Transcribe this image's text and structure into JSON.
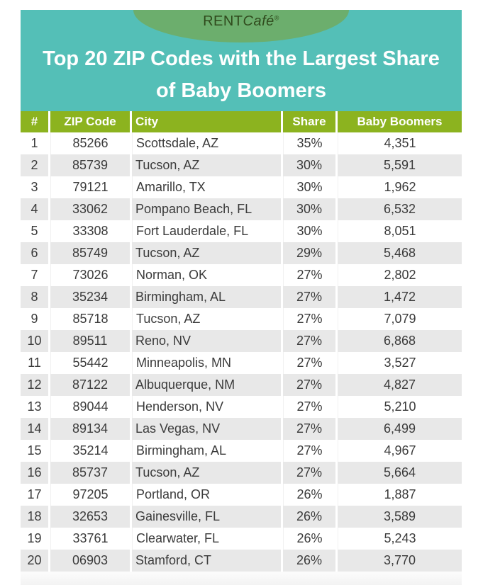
{
  "banner": {
    "background_color": "#54BFB7",
    "ellipse_color": "#6CAE6D",
    "logo": {
      "prefix": "RENT",
      "cafe": "Café",
      "registered": "®",
      "text_color": "#2F4A1C"
    },
    "title_line1": "Top 20 ZIP Codes with the Largest Share",
    "title_line2": "of Baby Boomers",
    "title_color": "#ffffff"
  },
  "chart_data": {
    "type": "table",
    "title": "Top 20 ZIP Codes with the Largest Share of Baby Boomers",
    "columns": [
      "#",
      "ZIP Code",
      "City",
      "Share",
      "Baby Boomers"
    ],
    "column_keys": [
      "rank",
      "zip-code",
      "city",
      "share",
      "baby-boomers"
    ],
    "rows": [
      [
        "1",
        "85266",
        "Scottsdale, AZ",
        "35%",
        "4,351"
      ],
      [
        "2",
        "85739",
        "Tucson, AZ",
        "30%",
        "5,591"
      ],
      [
        "3",
        "79121",
        "Amarillo, TX",
        "30%",
        "1,962"
      ],
      [
        "4",
        "33062",
        "Pompano Beach, FL",
        "30%",
        "6,532"
      ],
      [
        "5",
        "33308",
        "Fort Lauderdale, FL",
        "30%",
        "8,051"
      ],
      [
        "6",
        "85749",
        "Tucson, AZ",
        "29%",
        "5,468"
      ],
      [
        "7",
        "73026",
        "Norman, OK",
        "27%",
        "2,802"
      ],
      [
        "8",
        "35234",
        "Birmingham, AL",
        "27%",
        "1,472"
      ],
      [
        "9",
        "85718",
        "Tucson, AZ",
        "27%",
        "7,079"
      ],
      [
        "10",
        "89511",
        "Reno, NV",
        "27%",
        "6,868"
      ],
      [
        "11",
        "55442",
        "Minneapolis, MN",
        "27%",
        "3,527"
      ],
      [
        "12",
        "87122",
        "Albuquerque, NM",
        "27%",
        "4,827"
      ],
      [
        "13",
        "89044",
        "Henderson, NV",
        "27%",
        "5,210"
      ],
      [
        "14",
        "89134",
        "Las Vegas, NV",
        "27%",
        "6,499"
      ],
      [
        "15",
        "35214",
        "Birmingham, AL",
        "27%",
        "4,967"
      ],
      [
        "16",
        "85737",
        "Tucson, AZ",
        "27%",
        "5,664"
      ],
      [
        "17",
        "97205",
        "Portland, OR",
        "26%",
        "1,887"
      ],
      [
        "18",
        "32653",
        "Gainesville, FL",
        "26%",
        "3,589"
      ],
      [
        "19",
        "33761",
        "Clearwater, FL",
        "26%",
        "5,243"
      ],
      [
        "20",
        "06903",
        "Stamford, CT",
        "26%",
        "3,770"
      ]
    ],
    "layout": {
      "header_background": "#8CB31F",
      "row_alt_background": "#E8E8E8",
      "cell_text_color": "#3B3B3B",
      "grid": "alternating-stripes"
    }
  }
}
